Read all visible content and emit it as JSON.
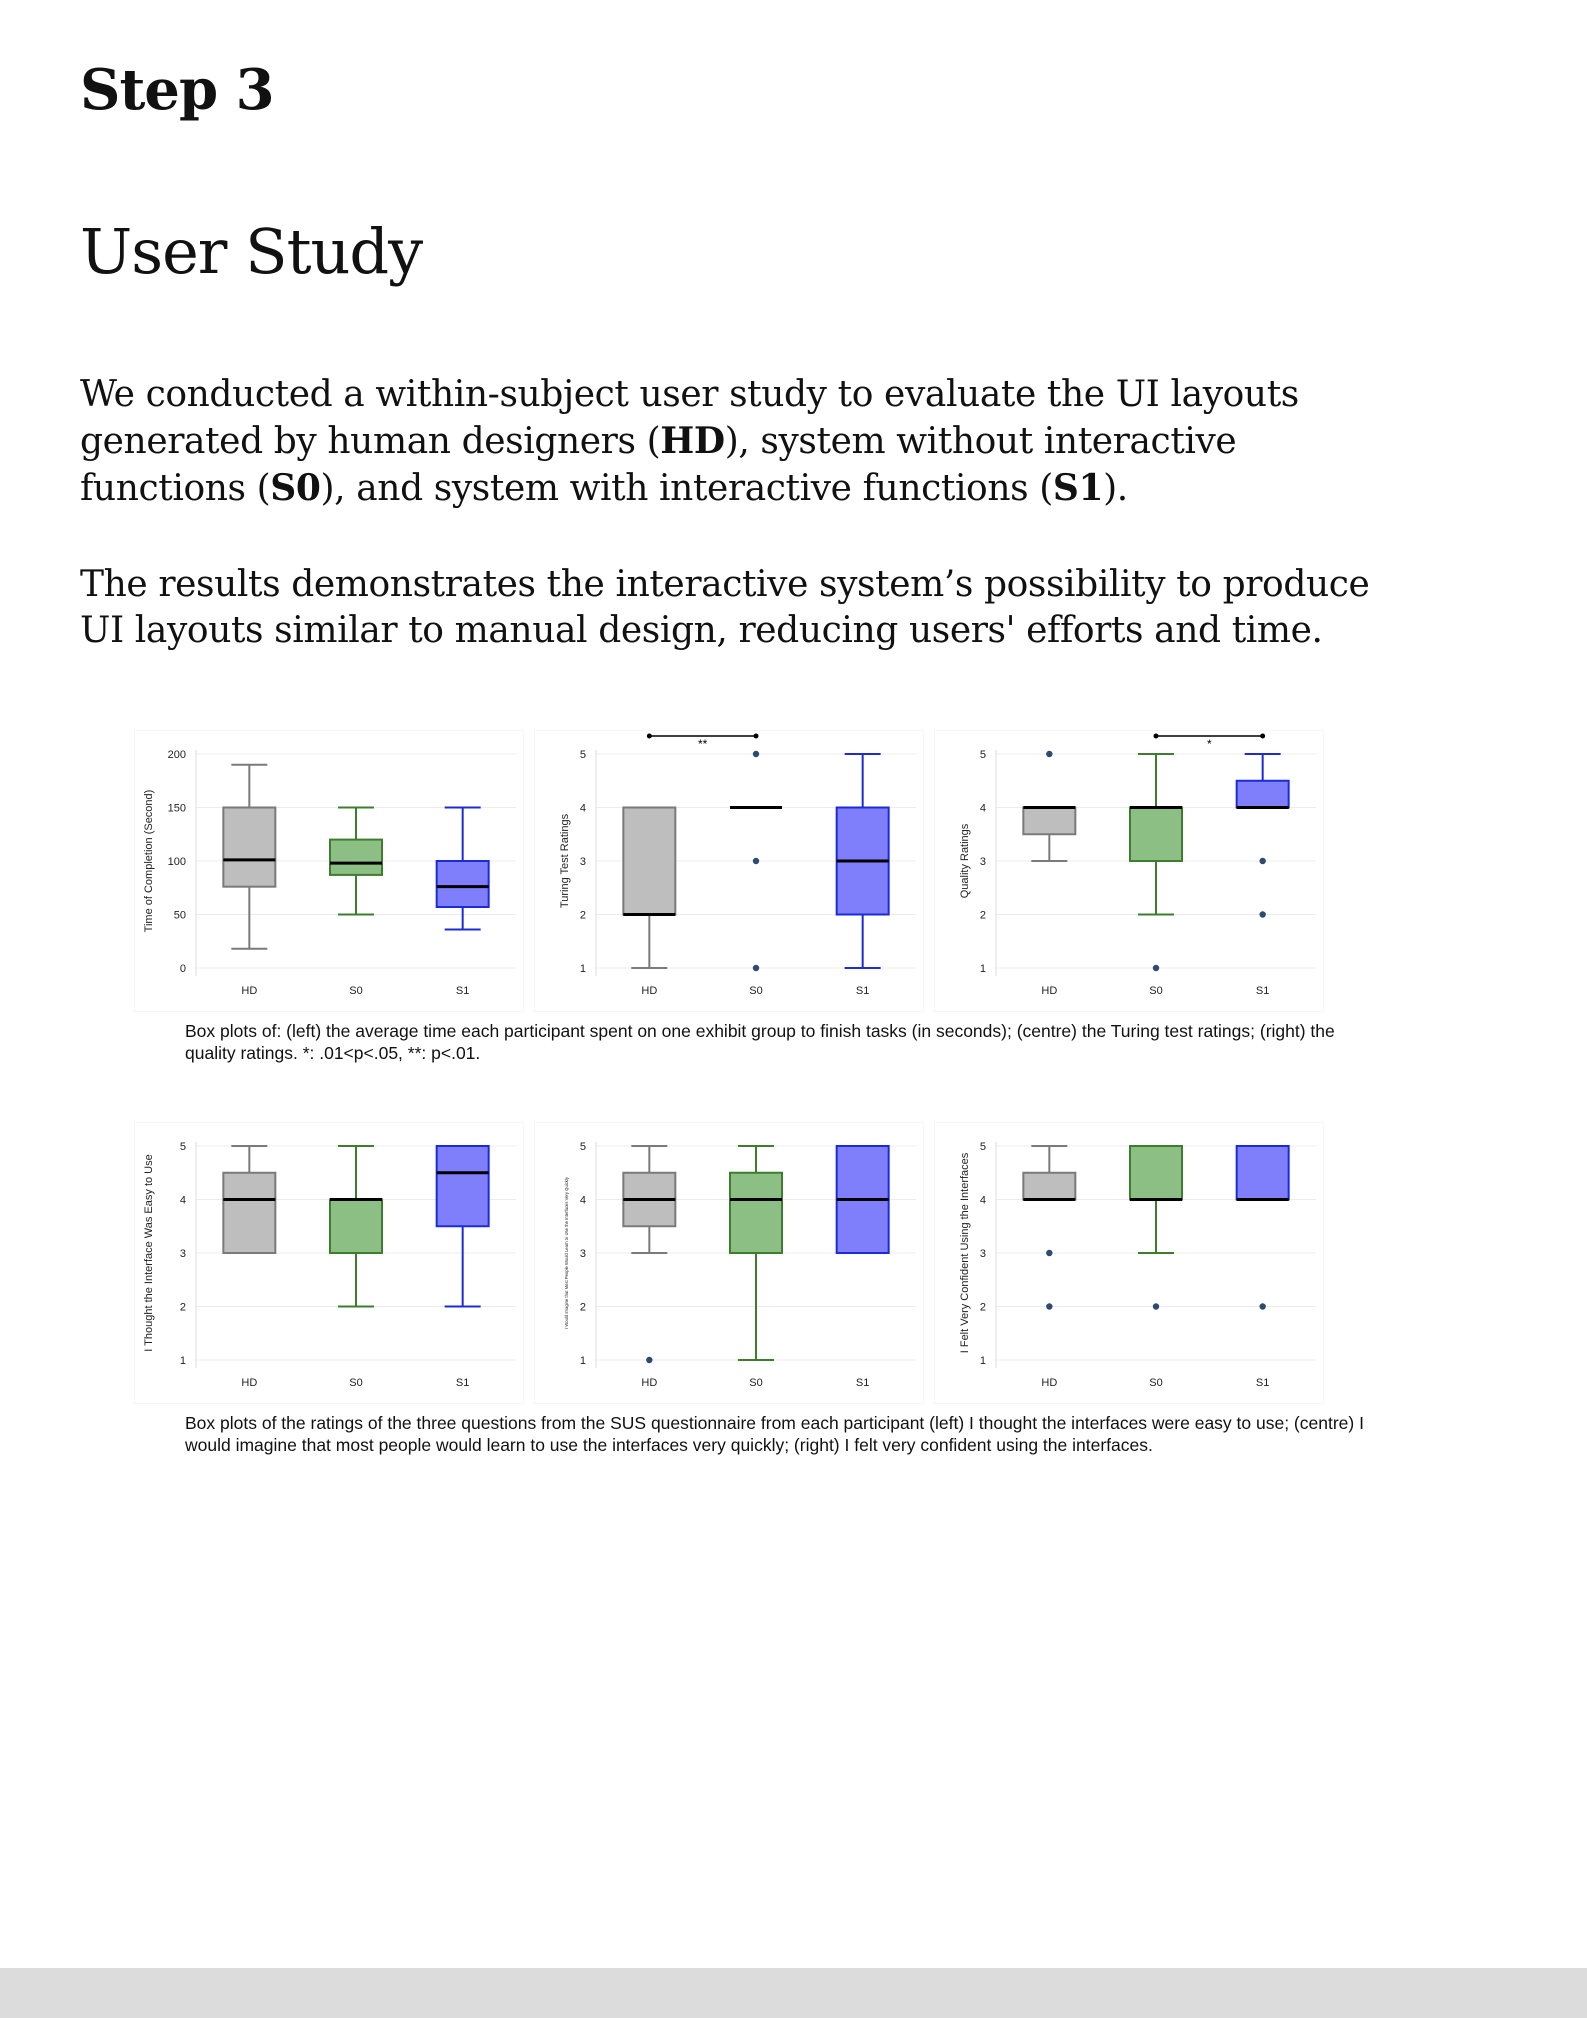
{
  "header": {
    "step": "Step 3",
    "section": "User Study"
  },
  "intro": {
    "p1": [
      {
        "t": "We conducted a within-subject user study to evaluate the UI layouts generated by human designers (",
        "b": false
      },
      {
        "t": "HD",
        "b": true
      },
      {
        "t": "), system without interactive functions (",
        "b": false
      },
      {
        "t": "S0",
        "b": true
      },
      {
        "t": "), and system with interactive functions (",
        "b": false
      },
      {
        "t": "S1",
        "b": true
      },
      {
        "t": ").",
        "b": false
      }
    ],
    "p2": [
      {
        "t": "The results demonstrates the interactive system’s possibility to produce UI layouts similar to manual design, reducing users' efforts and time.",
        "b": false
      }
    ]
  },
  "colors": {
    "HD": {
      "fill": "#bebebe",
      "stroke": "#7a7a7a"
    },
    "S0": {
      "fill": "#8cbf84",
      "stroke": "#3e7d2e"
    },
    "S1": {
      "fill": "#7f7ffb",
      "stroke": "#1c2bd6"
    },
    "outlier": "#2e4a6e",
    "median": "#000000"
  },
  "captions": {
    "row1": "Box plots of: (left) the average time each participant spent on one exhibit group to finish tasks (in seconds); (centre) the Turing test ratings; (right) the quality ratings. *: .01<p<.05, **: p<.01.",
    "row2": "Box plots of the ratings of the three questions from the SUS questionnaire from each participant (left) I thought the interfaces were easy to use; (centre) I would imagine that most people would learn to use the interfaces very quickly; (right) I felt very confident using the interfaces."
  },
  "chart_data": [
    {
      "type": "box",
      "ylabel": "Time of Completion (Second)",
      "ylim": [
        0,
        200
      ],
      "yticks": [
        0,
        50,
        100,
        150,
        200
      ],
      "categories": [
        "HD",
        "S0",
        "S1"
      ],
      "boxes": [
        {
          "name": "HD",
          "min": 18,
          "q1": 76,
          "median": 101,
          "q3": 150,
          "max": 190,
          "outliers": []
        },
        {
          "name": "S0",
          "min": 50,
          "q1": 87,
          "median": 98,
          "q3": 120,
          "max": 150,
          "outliers": []
        },
        {
          "name": "S1",
          "min": 36,
          "q1": 57,
          "median": 76,
          "q3": 100,
          "max": 150,
          "outliers": []
        }
      ],
      "significance": []
    },
    {
      "type": "box",
      "ylabel": "Turing Test Ratings",
      "ylim": [
        1,
        5
      ],
      "yticks": [
        1,
        2,
        3,
        4,
        5
      ],
      "categories": [
        "HD",
        "S0",
        "S1"
      ],
      "boxes": [
        {
          "name": "HD",
          "min": 1,
          "q1": 2,
          "median": 2,
          "q3": 4,
          "max": 4,
          "outliers": []
        },
        {
          "name": "S0",
          "min": 4,
          "q1": 4,
          "median": 4,
          "q3": 4,
          "max": 4,
          "outliers": [
            5,
            3,
            1
          ]
        },
        {
          "name": "S1",
          "min": 1,
          "q1": 2,
          "median": 3,
          "q3": 4,
          "max": 5,
          "outliers": []
        }
      ],
      "significance": [
        {
          "from": "HD",
          "to": "S0",
          "label": "**"
        }
      ]
    },
    {
      "type": "box",
      "ylabel": "Quality Ratings",
      "ylim": [
        1,
        5
      ],
      "yticks": [
        1,
        2,
        3,
        4,
        5
      ],
      "categories": [
        "HD",
        "S0",
        "S1"
      ],
      "boxes": [
        {
          "name": "HD",
          "min": 3,
          "q1": 3.5,
          "median": 4,
          "q3": 4,
          "max": 4,
          "outliers": [
            5
          ]
        },
        {
          "name": "S0",
          "min": 2,
          "q1": 3,
          "median": 4,
          "q3": 4,
          "max": 5,
          "outliers": [
            1
          ]
        },
        {
          "name": "S1",
          "min": 4,
          "q1": 4,
          "median": 4,
          "q3": 4.5,
          "max": 5,
          "outliers": [
            3,
            2
          ]
        }
      ],
      "significance": [
        {
          "from": "S0",
          "to": "S1",
          "label": "*"
        }
      ]
    },
    {
      "type": "box",
      "ylabel": "I Thought the Interface Was Easy to Use",
      "ylim": [
        1,
        5
      ],
      "yticks": [
        1,
        2,
        3,
        4,
        5
      ],
      "categories": [
        "HD",
        "S0",
        "S1"
      ],
      "boxes": [
        {
          "name": "HD",
          "min": 3,
          "q1": 3,
          "median": 4,
          "q3": 4.5,
          "max": 5,
          "outliers": []
        },
        {
          "name": "S0",
          "min": 2,
          "q1": 3,
          "median": 4,
          "q3": 4,
          "max": 5,
          "outliers": []
        },
        {
          "name": "S1",
          "min": 2,
          "q1": 3.5,
          "median": 4.5,
          "q3": 5,
          "max": 5,
          "outliers": []
        }
      ],
      "significance": []
    },
    {
      "type": "box",
      "ylabel": "I Would Imagine that Most People Would Learn to Use the Interfaces Very Quickly",
      "ylim": [
        1,
        5
      ],
      "yticks": [
        1,
        2,
        3,
        4,
        5
      ],
      "categories": [
        "HD",
        "S0",
        "S1"
      ],
      "boxes": [
        {
          "name": "HD",
          "min": 3,
          "q1": 3.5,
          "median": 4,
          "q3": 4.5,
          "max": 5,
          "outliers": [
            1
          ]
        },
        {
          "name": "S0",
          "min": 1,
          "q1": 3,
          "median": 4,
          "q3": 4.5,
          "max": 5,
          "outliers": []
        },
        {
          "name": "S1",
          "min": 3,
          "q1": 3,
          "median": 4,
          "q3": 5,
          "max": 5,
          "outliers": []
        }
      ],
      "significance": []
    },
    {
      "type": "box",
      "ylabel": "I Felt Very Confident Using the Interfaces",
      "ylim": [
        1,
        5
      ],
      "yticks": [
        1,
        2,
        3,
        4,
        5
      ],
      "categories": [
        "HD",
        "S0",
        "S1"
      ],
      "boxes": [
        {
          "name": "HD",
          "min": 4,
          "q1": 4,
          "median": 4,
          "q3": 4.5,
          "max": 5,
          "outliers": [
            3,
            2
          ]
        },
        {
          "name": "S0",
          "min": 3,
          "q1": 4,
          "median": 4,
          "q3": 5,
          "max": 5,
          "outliers": [
            2
          ]
        },
        {
          "name": "S1",
          "min": 4,
          "q1": 4,
          "median": 4,
          "q3": 5,
          "max": 5,
          "outliers": [
            2
          ]
        }
      ],
      "significance": []
    }
  ]
}
